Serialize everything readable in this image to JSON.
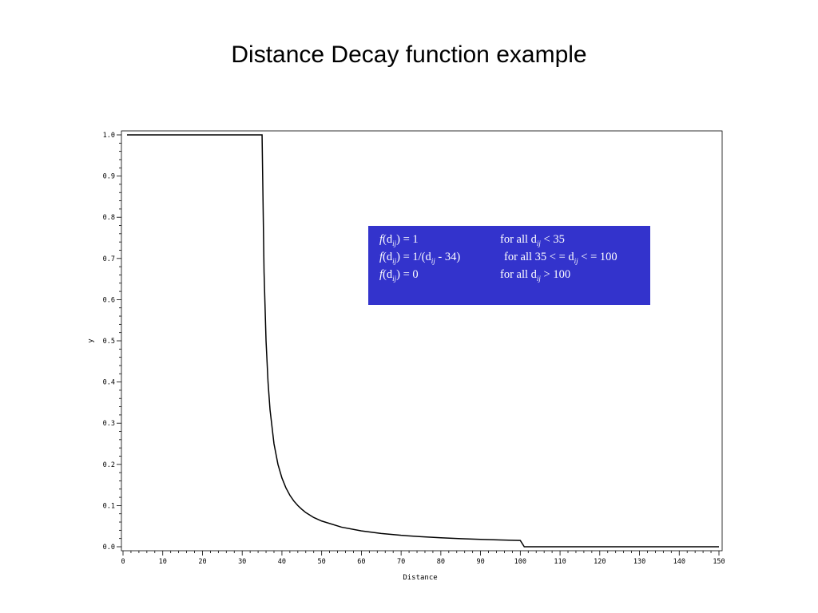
{
  "slide": {
    "title": "Distance Decay function example"
  },
  "legend_box": {
    "background": "#3333cc",
    "rows": [
      {
        "fx": "f",
        "lhs_pre": "(d",
        "sub": "ij",
        "lhs_post": ") = 1",
        "cond_pre": "for all d",
        "cond_sub": "ij",
        "cond_post": " < 35"
      },
      {
        "fx": "f",
        "lhs_pre": "(d",
        "sub": "ij",
        "lhs_post": ") = 1/(d",
        "sub2": "ij",
        "lhs_post2": " - 34)",
        "cond_pre": "for all 35 < = d",
        "cond_sub": "ij",
        "cond_post": " < = 100"
      },
      {
        "fx": "f",
        "lhs_pre": "(d",
        "sub": "ij",
        "lhs_post": ") = 0",
        "cond_pre": "for all d",
        "cond_sub": "ij",
        "cond_post": " > 100"
      }
    ]
  },
  "chart_data": {
    "type": "line",
    "title": "",
    "xlabel": "Distance",
    "ylabel": "y",
    "xlim": [
      0,
      150
    ],
    "ylim": [
      0,
      1
    ],
    "xticks": [
      0,
      10,
      20,
      30,
      40,
      50,
      60,
      70,
      80,
      90,
      100,
      110,
      120,
      130,
      140,
      150
    ],
    "xtick_labels": [
      "0",
      "10",
      "20",
      "30",
      "40",
      "50",
      "60",
      "70",
      "80",
      "90",
      "100",
      "110",
      "120",
      "130",
      "140",
      "150"
    ],
    "yticks": [
      0,
      0.1,
      0.2,
      0.3,
      0.4,
      0.5,
      0.6,
      0.7,
      0.8,
      0.9,
      1.0
    ],
    "ytick_labels": [
      "0.0",
      "0.1",
      "0.2",
      "0.3",
      "0.4",
      "0.5",
      "0.6",
      "0.7",
      "0.8",
      "0.9",
      "1.0"
    ],
    "grid": false,
    "line_color": "#000000",
    "series": [
      {
        "x": [
          1,
          34,
          35,
          35.5,
          36,
          36.5,
          37,
          38,
          39,
          40,
          41,
          42,
          43,
          44,
          45,
          46,
          48,
          50,
          55,
          60,
          65,
          70,
          75,
          80,
          85,
          90,
          95,
          100,
          101,
          150
        ],
        "y": [
          1,
          1,
          1,
          0.667,
          0.5,
          0.4,
          0.333,
          0.25,
          0.2,
          0.167,
          0.143,
          0.125,
          0.111,
          0.1,
          0.091,
          0.083,
          0.071,
          0.0625,
          0.0476,
          0.0385,
          0.0323,
          0.0278,
          0.0244,
          0.0217,
          0.0196,
          0.0179,
          0.0164,
          0.0152,
          0,
          0
        ]
      }
    ]
  }
}
